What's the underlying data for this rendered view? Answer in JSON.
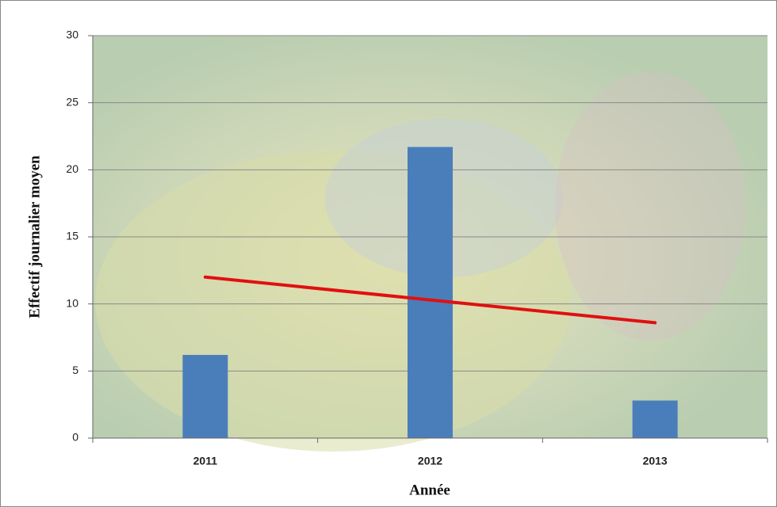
{
  "chart_data": {
    "type": "bar",
    "x_label": "Année",
    "y_label": "Effectif journalier moyen",
    "categories": [
      "2011",
      "2012",
      "2013"
    ],
    "values": [
      6.2,
      21.7,
      2.8
    ],
    "color": "#4a7ebb",
    "trendline": {
      "values": [
        12,
        10.3,
        8.6
      ],
      "color": "#e01010"
    },
    "ylim": [
      0,
      30
    ],
    "yticks": [
      0,
      5,
      10,
      15,
      20,
      25,
      30
    ],
    "grid": true
  }
}
